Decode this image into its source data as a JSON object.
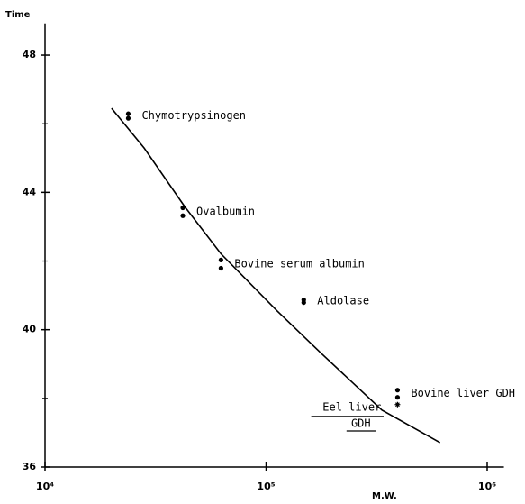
{
  "chart_data": {
    "type": "scatter",
    "x_scale": "log",
    "y_label": "Time",
    "x_label": "M.W.",
    "xlim": [
      10000,
      1190000
    ],
    "xticks": [
      {
        "value": 10000,
        "label": "10⁴"
      },
      {
        "value": 100000,
        "label": "10⁵"
      },
      {
        "value": 1000000,
        "label": "10⁶"
      }
    ],
    "ylim": [
      36,
      48.9
    ],
    "yticks": [
      36,
      40,
      44,
      48
    ],
    "yminor_ticks": [
      38,
      42,
      46
    ],
    "color": "#000000",
    "points": [
      {
        "label": "Chymotrypsinogen",
        "x": [
          23800,
          23800
        ],
        "values": [
          46.29,
          46.16
        ]
      },
      {
        "label": "Ovalbumin",
        "x": [
          42000,
          42000
        ],
        "values": [
          43.55,
          43.32
        ]
      },
      {
        "label": "Bovine serum albumin",
        "x": [
          62500,
          62500
        ],
        "values": [
          42.03,
          41.79
        ]
      },
      {
        "label": "Aldolase",
        "x": [
          148000,
          148000
        ],
        "values": [
          40.87,
          40.79
        ]
      },
      {
        "label": "Bovine liver GDH",
        "x": [
          393000,
          393000
        ],
        "values": [
          38.24,
          38.03
        ]
      },
      {
        "marker": "star",
        "x": [
          393000
        ],
        "values": [
          37.82
        ]
      }
    ],
    "curve": {
      "x": [
        20000,
        28100,
        42900,
        62500,
        112000,
        177000,
        334000,
        612000
      ],
      "values": [
        46.45,
        45.29,
        43.58,
        42.21,
        40.55,
        39.32,
        37.66,
        36.71
      ]
    },
    "range_annotation": {
      "label": "Eel liver",
      "sublabel": "GDH",
      "x": [
        160000,
        340000
      ],
      "value": 37.47
    }
  }
}
